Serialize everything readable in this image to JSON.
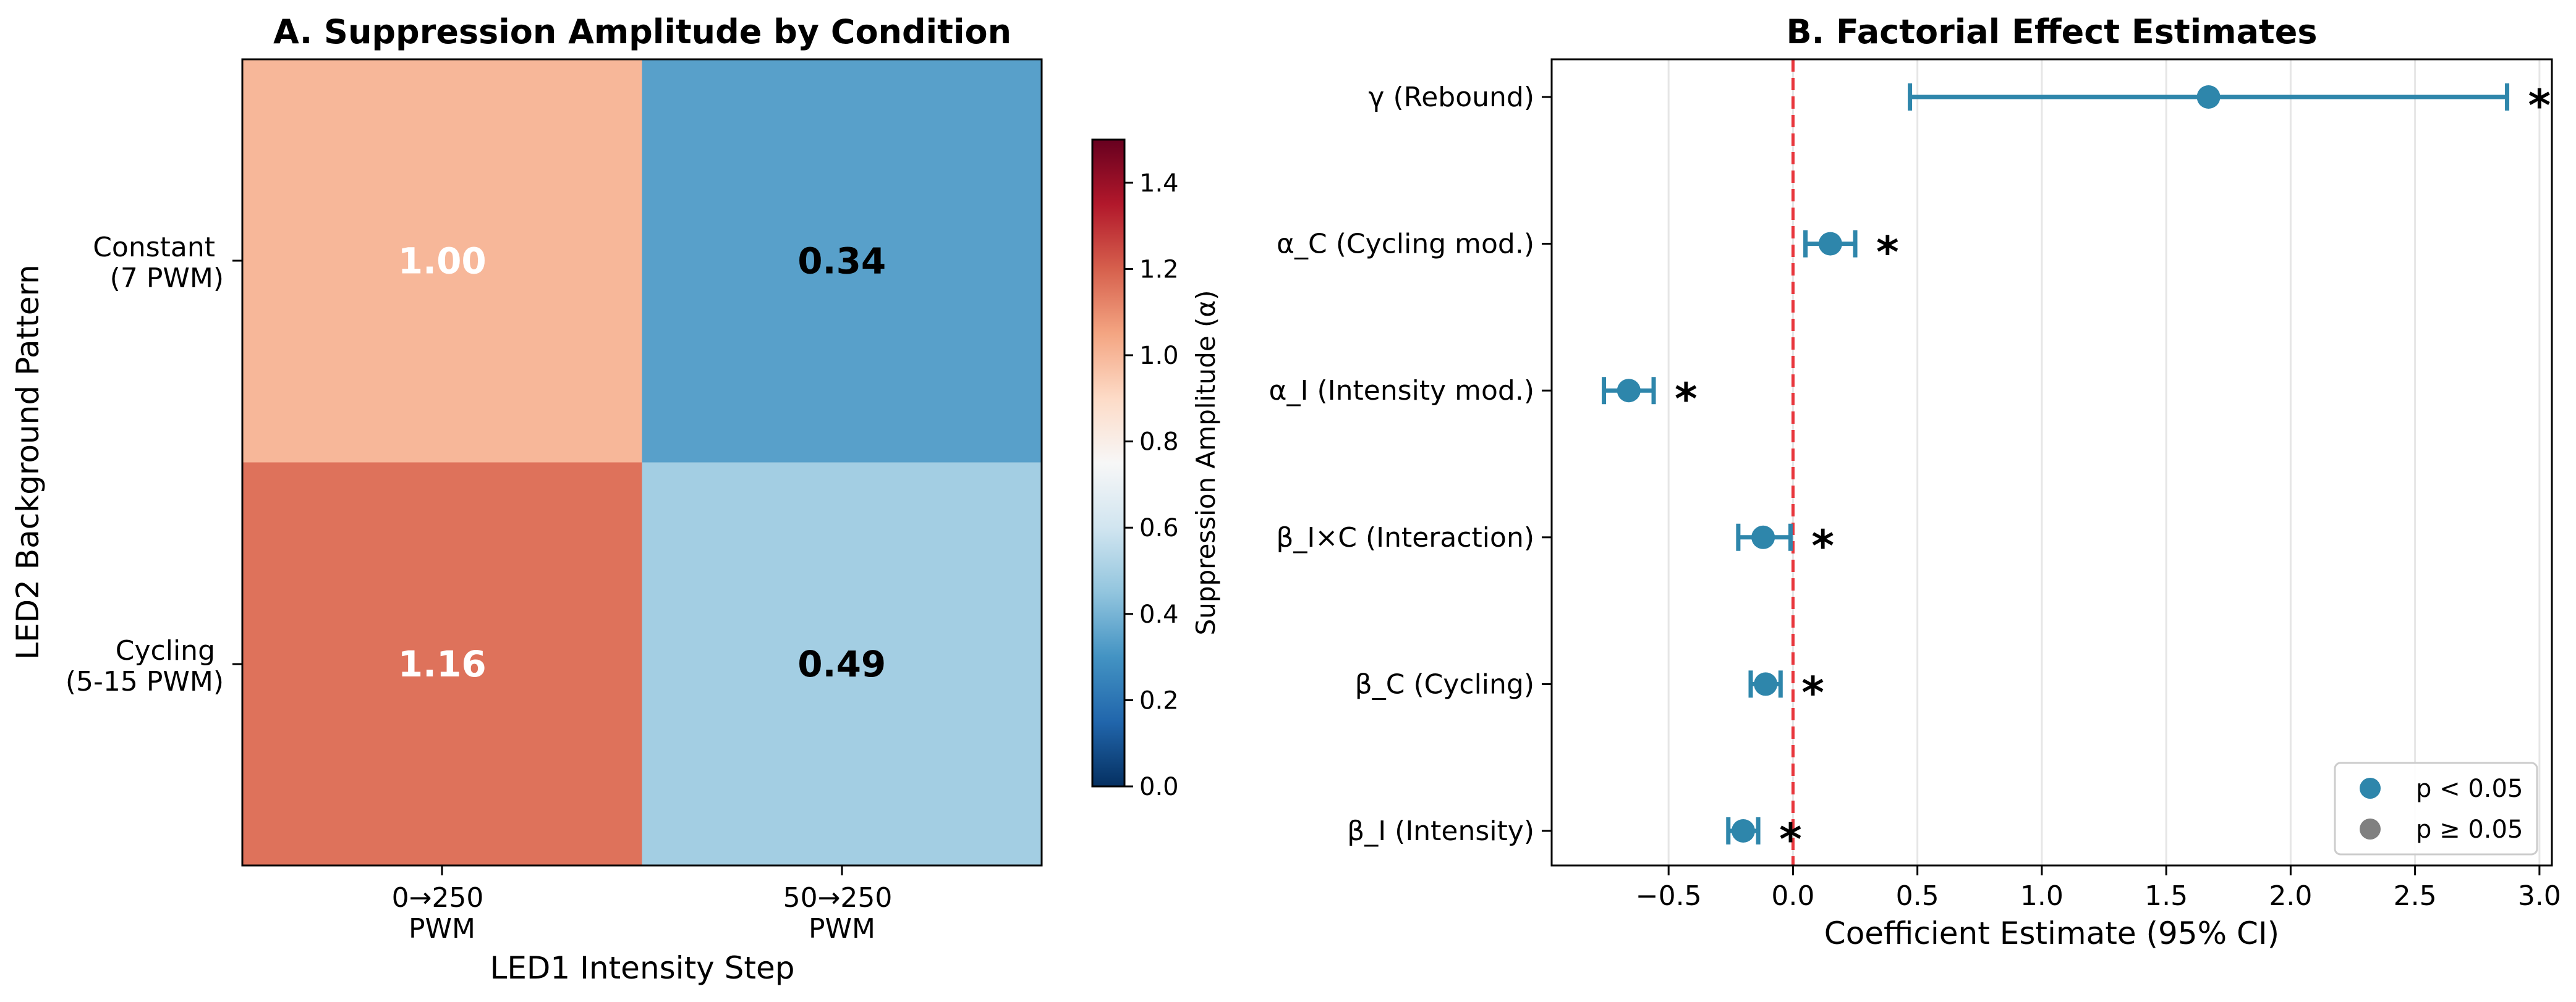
{
  "chart_data": [
    {
      "type": "heatmap",
      "title": "A. Suppression Amplitude by Condition",
      "xlabel": "LED1 Intensity Step",
      "ylabel": "LED2 Background Pattern",
      "x_categories": [
        {
          "line1": "0→250",
          "line2": "PWM"
        },
        {
          "line1": "50→250",
          "line2": "PWM"
        }
      ],
      "y_categories": [
        {
          "line1": "Constant",
          "line2": "(7 PWM)"
        },
        {
          "line1": "Cycling",
          "line2": "(5-15 PWM)"
        }
      ],
      "values": [
        [
          1.0,
          0.34
        ],
        [
          1.16,
          0.49
        ]
      ],
      "value_labels": [
        [
          "1.00",
          "0.34"
        ],
        [
          "1.16",
          "0.49"
        ]
      ],
      "colormap": "RdBu_r",
      "vmin": 0.0,
      "vmax": 1.5,
      "colorbar_label": "Suppression Amplitude (α)",
      "colorbar_ticks": [
        "0.0",
        "0.2",
        "0.4",
        "0.6",
        "0.8",
        "1.0",
        "1.2",
        "1.4"
      ]
    },
    {
      "type": "forest",
      "title": "B. Factorial Effect Estimates",
      "xlabel": "Coefficient Estimate (95% CI)",
      "xlim": [
        -0.97,
        3.05
      ],
      "xticks": [
        {
          "value": -0.5,
          "label": "−0.5"
        },
        {
          "value": 0.0,
          "label": "0.0"
        },
        {
          "value": 0.5,
          "label": "0.5"
        },
        {
          "value": 1.0,
          "label": "1.0"
        },
        {
          "value": 1.5,
          "label": "1.5"
        },
        {
          "value": 2.0,
          "label": "2.0"
        },
        {
          "value": 2.5,
          "label": "2.5"
        },
        {
          "value": 3.0,
          "label": "3.0"
        }
      ],
      "reference_line": 0.0,
      "grid": "vertical",
      "terms": [
        {
          "label": "γ (Rebound)",
          "estimate": 1.67,
          "ci": [
            0.47,
            2.87
          ],
          "significant": true,
          "marker": "*"
        },
        {
          "label": "α_C (Cycling mod.)",
          "estimate": 0.15,
          "ci": [
            0.05,
            0.25
          ],
          "significant": true,
          "marker": "*"
        },
        {
          "label": "α_I (Intensity mod.)",
          "estimate": -0.66,
          "ci": [
            -0.76,
            -0.56
          ],
          "significant": true,
          "marker": "*"
        },
        {
          "label": "β_I×C (Interaction)",
          "estimate": -0.12,
          "ci": [
            -0.22,
            -0.01
          ],
          "significant": true,
          "marker": "*"
        },
        {
          "label": "β_C (Cycling)",
          "estimate": -0.11,
          "ci": [
            -0.17,
            -0.05
          ],
          "significant": true,
          "marker": "*"
        },
        {
          "label": "β_I (Intensity)",
          "estimate": -0.2,
          "ci": [
            -0.26,
            -0.14
          ],
          "significant": true,
          "marker": "*"
        }
      ],
      "legend": {
        "position": "lower-right",
        "entries": [
          {
            "label": "p < 0.05",
            "color": "#2e86ab"
          },
          {
            "label": "p ≥ 0.05",
            "color": "#808080"
          }
        ]
      },
      "colors": {
        "point": "#2e86ab",
        "reference": "#e8363c",
        "grid": "#e6e6e6"
      }
    }
  ]
}
